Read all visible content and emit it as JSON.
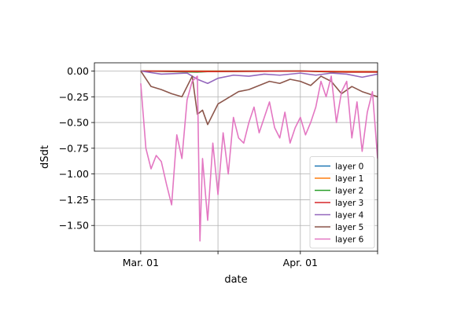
{
  "chart_data": {
    "type": "line",
    "xlabel": "date",
    "ylabel": "dSdt",
    "grid": true,
    "legend_position": "lower-right",
    "x_range": [
      "2020-02-21",
      "2020-04-16"
    ],
    "ylim": [
      -1.75,
      0.08
    ],
    "x_ticks": [
      {
        "date": "2020-03-01",
        "label": "Mar. 01"
      },
      {
        "date": "2020-03-16",
        "label": ""
      },
      {
        "date": "2020-04-01",
        "label": "Apr. 01"
      },
      {
        "date": "2020-04-16",
        "label": ""
      }
    ],
    "y_ticks": [
      {
        "value": 0.0,
        "label": "0.00"
      },
      {
        "value": -0.25,
        "label": "−0.25"
      },
      {
        "value": -0.5,
        "label": "−0.50"
      },
      {
        "value": -0.75,
        "label": "−0.75"
      },
      {
        "value": -1.0,
        "label": "−1.00"
      },
      {
        "value": -1.25,
        "label": "−1.25"
      },
      {
        "value": -1.5,
        "label": "−1.50"
      }
    ],
    "series": [
      {
        "name": "layer 0",
        "color": "#1f77b4",
        "points": [
          [
            "2020-03-01",
            0
          ],
          [
            "2020-03-15",
            0
          ],
          [
            "2020-04-01",
            0
          ],
          [
            "2020-04-08",
            -0.005
          ],
          [
            "2020-04-16",
            -0.005
          ]
        ]
      },
      {
        "name": "layer 1",
        "color": "#ff7f0e",
        "points": [
          [
            "2020-03-01",
            0
          ],
          [
            "2020-03-15",
            0
          ],
          [
            "2020-04-01",
            0
          ],
          [
            "2020-04-08",
            -0.004
          ],
          [
            "2020-04-16",
            -0.006
          ]
        ]
      },
      {
        "name": "layer 2",
        "color": "#2ca02c",
        "points": [
          [
            "2020-03-01",
            0
          ],
          [
            "2020-03-12",
            -0.01
          ],
          [
            "2020-03-14",
            -0.005
          ],
          [
            "2020-04-01",
            0
          ],
          [
            "2020-04-08",
            -0.01
          ],
          [
            "2020-04-16",
            -0.01
          ]
        ]
      },
      {
        "name": "layer 3",
        "color": "#d62728",
        "points": [
          [
            "2020-03-01",
            0
          ],
          [
            "2020-03-15",
            -0.005
          ],
          [
            "2020-04-01",
            0
          ],
          [
            "2020-04-10",
            -0.01
          ],
          [
            "2020-04-16",
            -0.01
          ]
        ]
      },
      {
        "name": "layer 4",
        "color": "#9467bd",
        "points": [
          [
            "2020-03-01",
            0
          ],
          [
            "2020-03-05",
            -0.03
          ],
          [
            "2020-03-10",
            -0.02
          ],
          [
            "2020-03-12",
            -0.08
          ],
          [
            "2020-03-14",
            -0.12
          ],
          [
            "2020-03-16",
            -0.07
          ],
          [
            "2020-03-19",
            -0.04
          ],
          [
            "2020-03-22",
            -0.05
          ],
          [
            "2020-03-25",
            -0.03
          ],
          [
            "2020-03-28",
            -0.04
          ],
          [
            "2020-04-01",
            -0.02
          ],
          [
            "2020-04-04",
            -0.04
          ],
          [
            "2020-04-07",
            -0.02
          ],
          [
            "2020-04-10",
            -0.03
          ],
          [
            "2020-04-13",
            -0.06
          ],
          [
            "2020-04-16",
            -0.03
          ]
        ]
      },
      {
        "name": "layer 5",
        "color": "#8c564b",
        "points": [
          [
            "2020-03-01",
            0
          ],
          [
            "2020-03-03",
            -0.15
          ],
          [
            "2020-03-05",
            -0.18
          ],
          [
            "2020-03-07",
            -0.22
          ],
          [
            "2020-03-09",
            -0.25
          ],
          [
            "2020-03-11",
            -0.05
          ],
          [
            "2020-03-12",
            -0.42
          ],
          [
            "2020-03-13",
            -0.38
          ],
          [
            "2020-03-14",
            -0.52
          ],
          [
            "2020-03-16",
            -0.32
          ],
          [
            "2020-03-18",
            -0.26
          ],
          [
            "2020-03-20",
            -0.2
          ],
          [
            "2020-03-22",
            -0.18
          ],
          [
            "2020-03-24",
            -0.14
          ],
          [
            "2020-03-26",
            -0.1
          ],
          [
            "2020-03-28",
            -0.12
          ],
          [
            "2020-03-30",
            -0.08
          ],
          [
            "2020-04-01",
            -0.1
          ],
          [
            "2020-04-03",
            -0.14
          ],
          [
            "2020-04-05",
            -0.05
          ],
          [
            "2020-04-07",
            -0.1
          ],
          [
            "2020-04-09",
            -0.22
          ],
          [
            "2020-04-11",
            -0.15
          ],
          [
            "2020-04-13",
            -0.2
          ],
          [
            "2020-04-16",
            -0.25
          ]
        ]
      },
      {
        "name": "layer 6",
        "color": "#e377c2",
        "points": [
          [
            "2020-03-01",
            -0.12
          ],
          [
            "2020-03-02",
            -0.75
          ],
          [
            "2020-03-03",
            -0.95
          ],
          [
            "2020-03-04",
            -0.82
          ],
          [
            "2020-03-05",
            -0.88
          ],
          [
            "2020-03-06",
            -1.1
          ],
          [
            "2020-03-07",
            -1.3
          ],
          [
            "2020-03-08",
            -0.62
          ],
          [
            "2020-03-09",
            -0.85
          ],
          [
            "2020-03-10",
            -0.28
          ],
          [
            "2020-03-11",
            -0.1
          ],
          [
            "2020-03-12",
            -0.05
          ],
          [
            "2020-03-12.5",
            -1.65
          ],
          [
            "2020-03-13",
            -0.85
          ],
          [
            "2020-03-14",
            -1.45
          ],
          [
            "2020-03-15",
            -0.7
          ],
          [
            "2020-03-16",
            -1.2
          ],
          [
            "2020-03-17",
            -0.6
          ],
          [
            "2020-03-18",
            -1.0
          ],
          [
            "2020-03-19",
            -0.45
          ],
          [
            "2020-03-20",
            -0.65
          ],
          [
            "2020-03-21",
            -0.7
          ],
          [
            "2020-03-22",
            -0.5
          ],
          [
            "2020-03-23",
            -0.35
          ],
          [
            "2020-03-24",
            -0.6
          ],
          [
            "2020-03-25",
            -0.45
          ],
          [
            "2020-03-26",
            -0.3
          ],
          [
            "2020-03-27",
            -0.55
          ],
          [
            "2020-03-28",
            -0.65
          ],
          [
            "2020-03-29",
            -0.4
          ],
          [
            "2020-03-30",
            -0.7
          ],
          [
            "2020-03-31",
            -0.55
          ],
          [
            "2020-04-01",
            -0.45
          ],
          [
            "2020-04-02",
            -0.62
          ],
          [
            "2020-04-03",
            -0.5
          ],
          [
            "2020-04-04",
            -0.35
          ],
          [
            "2020-04-05",
            -0.1
          ],
          [
            "2020-04-06",
            -0.25
          ],
          [
            "2020-04-07",
            -0.05
          ],
          [
            "2020-04-08",
            -0.5
          ],
          [
            "2020-04-09",
            -0.2
          ],
          [
            "2020-04-10",
            -0.1
          ],
          [
            "2020-04-11",
            -0.65
          ],
          [
            "2020-04-12",
            -0.3
          ],
          [
            "2020-04-13",
            -0.78
          ],
          [
            "2020-04-14",
            -0.4
          ],
          [
            "2020-04-15",
            -0.2
          ],
          [
            "2020-04-16",
            -0.85
          ]
        ]
      }
    ]
  }
}
